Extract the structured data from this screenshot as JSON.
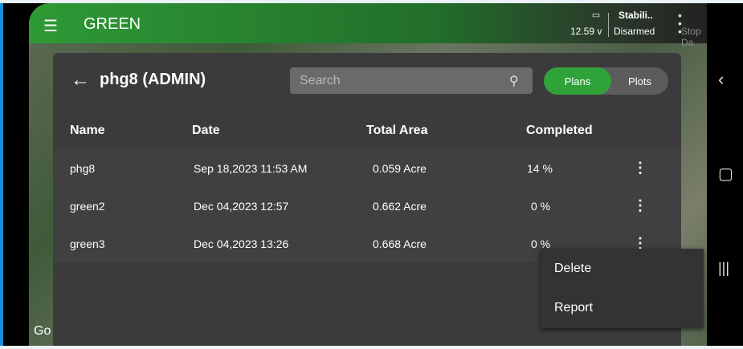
{
  "app": {
    "title": "GREEN"
  },
  "status": {
    "battery_voltage": "12.59 v",
    "mode": "Stabili..",
    "arm_state": "Disarmed",
    "stop_label": "Stop Da"
  },
  "panel": {
    "title": "phg8 (ADMIN)",
    "search_placeholder": "Search",
    "tabs": [
      {
        "label": "Plans",
        "active": true
      },
      {
        "label": "Plots",
        "active": false
      }
    ]
  },
  "table": {
    "headers": [
      "Name",
      "Date",
      "Total Area",
      "Completed"
    ],
    "rows": [
      {
        "name": "phg8",
        "date": "Sep 18,2023 11:53 AM",
        "area": "0.059 Acre",
        "completed": "14 %"
      },
      {
        "name": "green2",
        "date": "Dec 04,2023 12:57",
        "area": "0.662 Acre",
        "completed": "0 %"
      },
      {
        "name": "green3",
        "date": "Dec 04,2023 13:26",
        "area": "0.668 Acre",
        "completed": "0 %"
      }
    ]
  },
  "context_menu": {
    "items": [
      "Delete",
      "Report"
    ]
  },
  "map": {
    "attribution": "Go"
  },
  "colors": {
    "accent": "#2fa33a",
    "panel": "#3b3b3b"
  }
}
